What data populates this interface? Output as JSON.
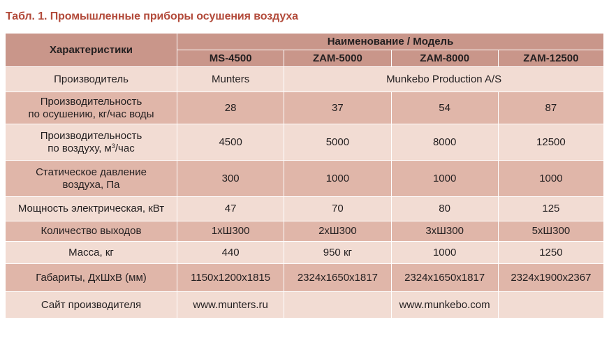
{
  "title": "Табл. 1. Промышленные приборы осушения воздуха",
  "header": {
    "characteristics": "Характеристики",
    "name_model": "Наименование / Модель",
    "models": [
      "MS-4500",
      "ZAM-5000",
      "ZAM-8000",
      "ZAM-12500"
    ]
  },
  "rows": {
    "manufacturer": {
      "label": "Производитель",
      "munters": "Munters",
      "munkebo": "Munkebo Production A/S"
    },
    "drying": {
      "label_line1": "Производительность",
      "label_line2": "по осушению, кг/час воды",
      "values": [
        "28",
        "37",
        "54",
        "87"
      ]
    },
    "airflow": {
      "label_line1": "Производительность",
      "label_line2_pre": "по воздуху, м",
      "label_sup": "3",
      "label_line2_post": "/час",
      "values": [
        "4500",
        "5000",
        "8000",
        "12500"
      ]
    },
    "pressure": {
      "label_line1": "Статическое давление",
      "label_line2": "воздуха, Па",
      "values": [
        "300",
        "1000",
        "1000",
        "1000"
      ]
    },
    "power": {
      "label": "Мощность электрическая, кВт",
      "values": [
        "47",
        "70",
        "80",
        "125"
      ]
    },
    "outlets": {
      "label": "Количество выходов",
      "values": [
        "1хШ300",
        "2хШ300",
        "3хШ300",
        "5хШ300"
      ]
    },
    "mass": {
      "label": "Масса, кг",
      "values": [
        "440",
        "950 кг",
        "1000",
        "1250"
      ]
    },
    "dimensions": {
      "label": "Габариты, ДхШхВ (мм)",
      "values": [
        "1150x1200x1815",
        "2324x1650x1817",
        "2324x1650x1817",
        "2324x1900x2367"
      ]
    },
    "website": {
      "label": "Сайт производителя",
      "munters": "www.munters.ru",
      "munkebo": "www.munkebo.com"
    }
  },
  "colors": {
    "title": "#b24a3a",
    "header_bg": "#c9968a",
    "row_light": "#f2dcd3",
    "row_dark": "#e0b6a9"
  }
}
